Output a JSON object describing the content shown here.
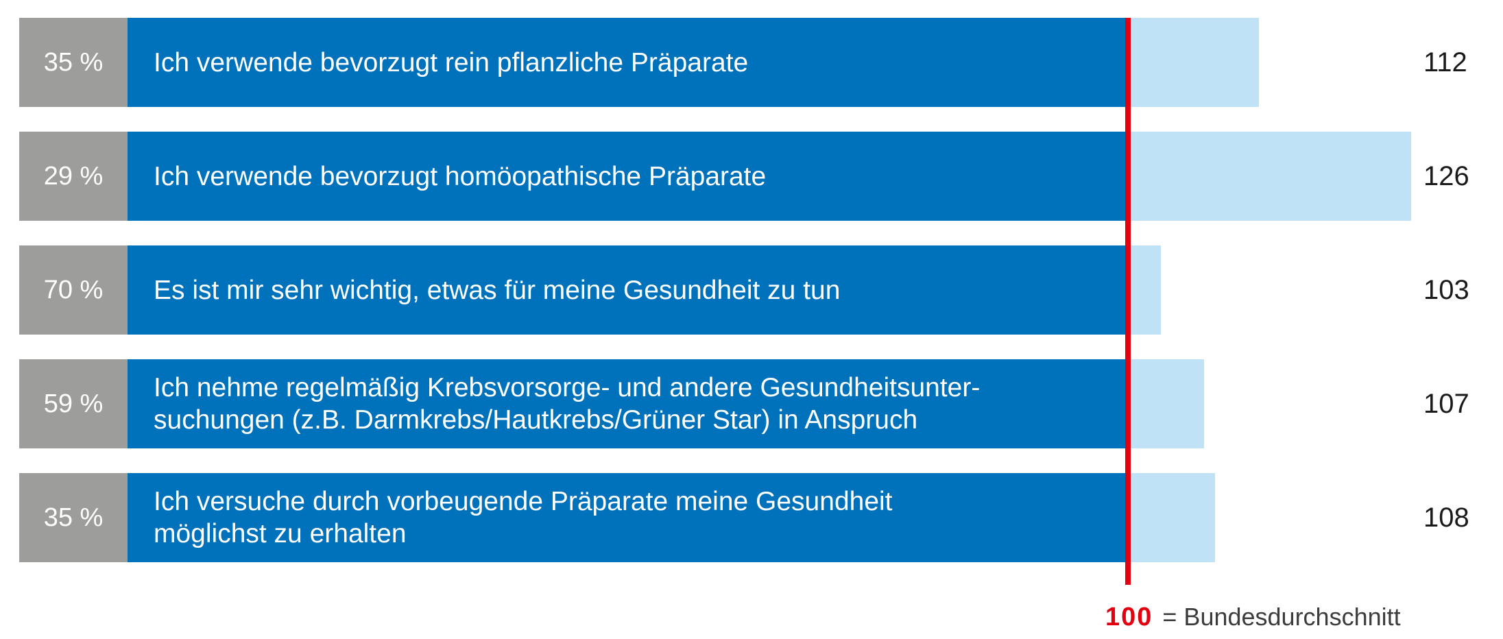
{
  "chart_data": {
    "type": "bar",
    "orientation": "horizontal",
    "title": "",
    "reference_line": {
      "value": 100,
      "label": "100",
      "legend_suffix": "= Bundesdurchschnitt",
      "color": "#e3000f"
    },
    "x_axis": {
      "baseline_value": 100,
      "range_hint": [
        100,
        126
      ],
      "gridlines": false
    },
    "rows": [
      {
        "pct": "35 %",
        "pct_value": 35,
        "label_lines": [
          "Ich verwende bevorzugt rein pflanzliche Präparate"
        ],
        "index_value": 112
      },
      {
        "pct": "29 %",
        "pct_value": 29,
        "label_lines": [
          "Ich verwende bevorzugt homöopathische Präparate"
        ],
        "index_value": 126
      },
      {
        "pct": "70 %",
        "pct_value": 70,
        "label_lines": [
          "Es ist mir sehr wichtig, etwas für meine Gesundheit zu tun"
        ],
        "index_value": 103
      },
      {
        "pct": "59 %",
        "pct_value": 59,
        "label_lines": [
          "Ich nehme regelmäßig Krebsvorsorge- und andere Gesundheitsunter-",
          "suchungen (z.B. Darmkrebs/Hautkrebs/Grüner Star) in Anspruch"
        ],
        "index_value": 107
      },
      {
        "pct": "35 %",
        "pct_value": 35,
        "label_lines": [
          "Ich versuche durch vorbeugende Präparate meine Gesundheit",
          "möglichst zu erhalten"
        ],
        "index_value": 108
      }
    ],
    "colors": {
      "bar_dark": "#0072bc",
      "bar_light": "#bfe2f7",
      "pct_box": "#9d9d9c",
      "reference_red": "#e3000f",
      "value_text": "#1a1a1a",
      "legend_text": "#3c3c3b"
    }
  }
}
